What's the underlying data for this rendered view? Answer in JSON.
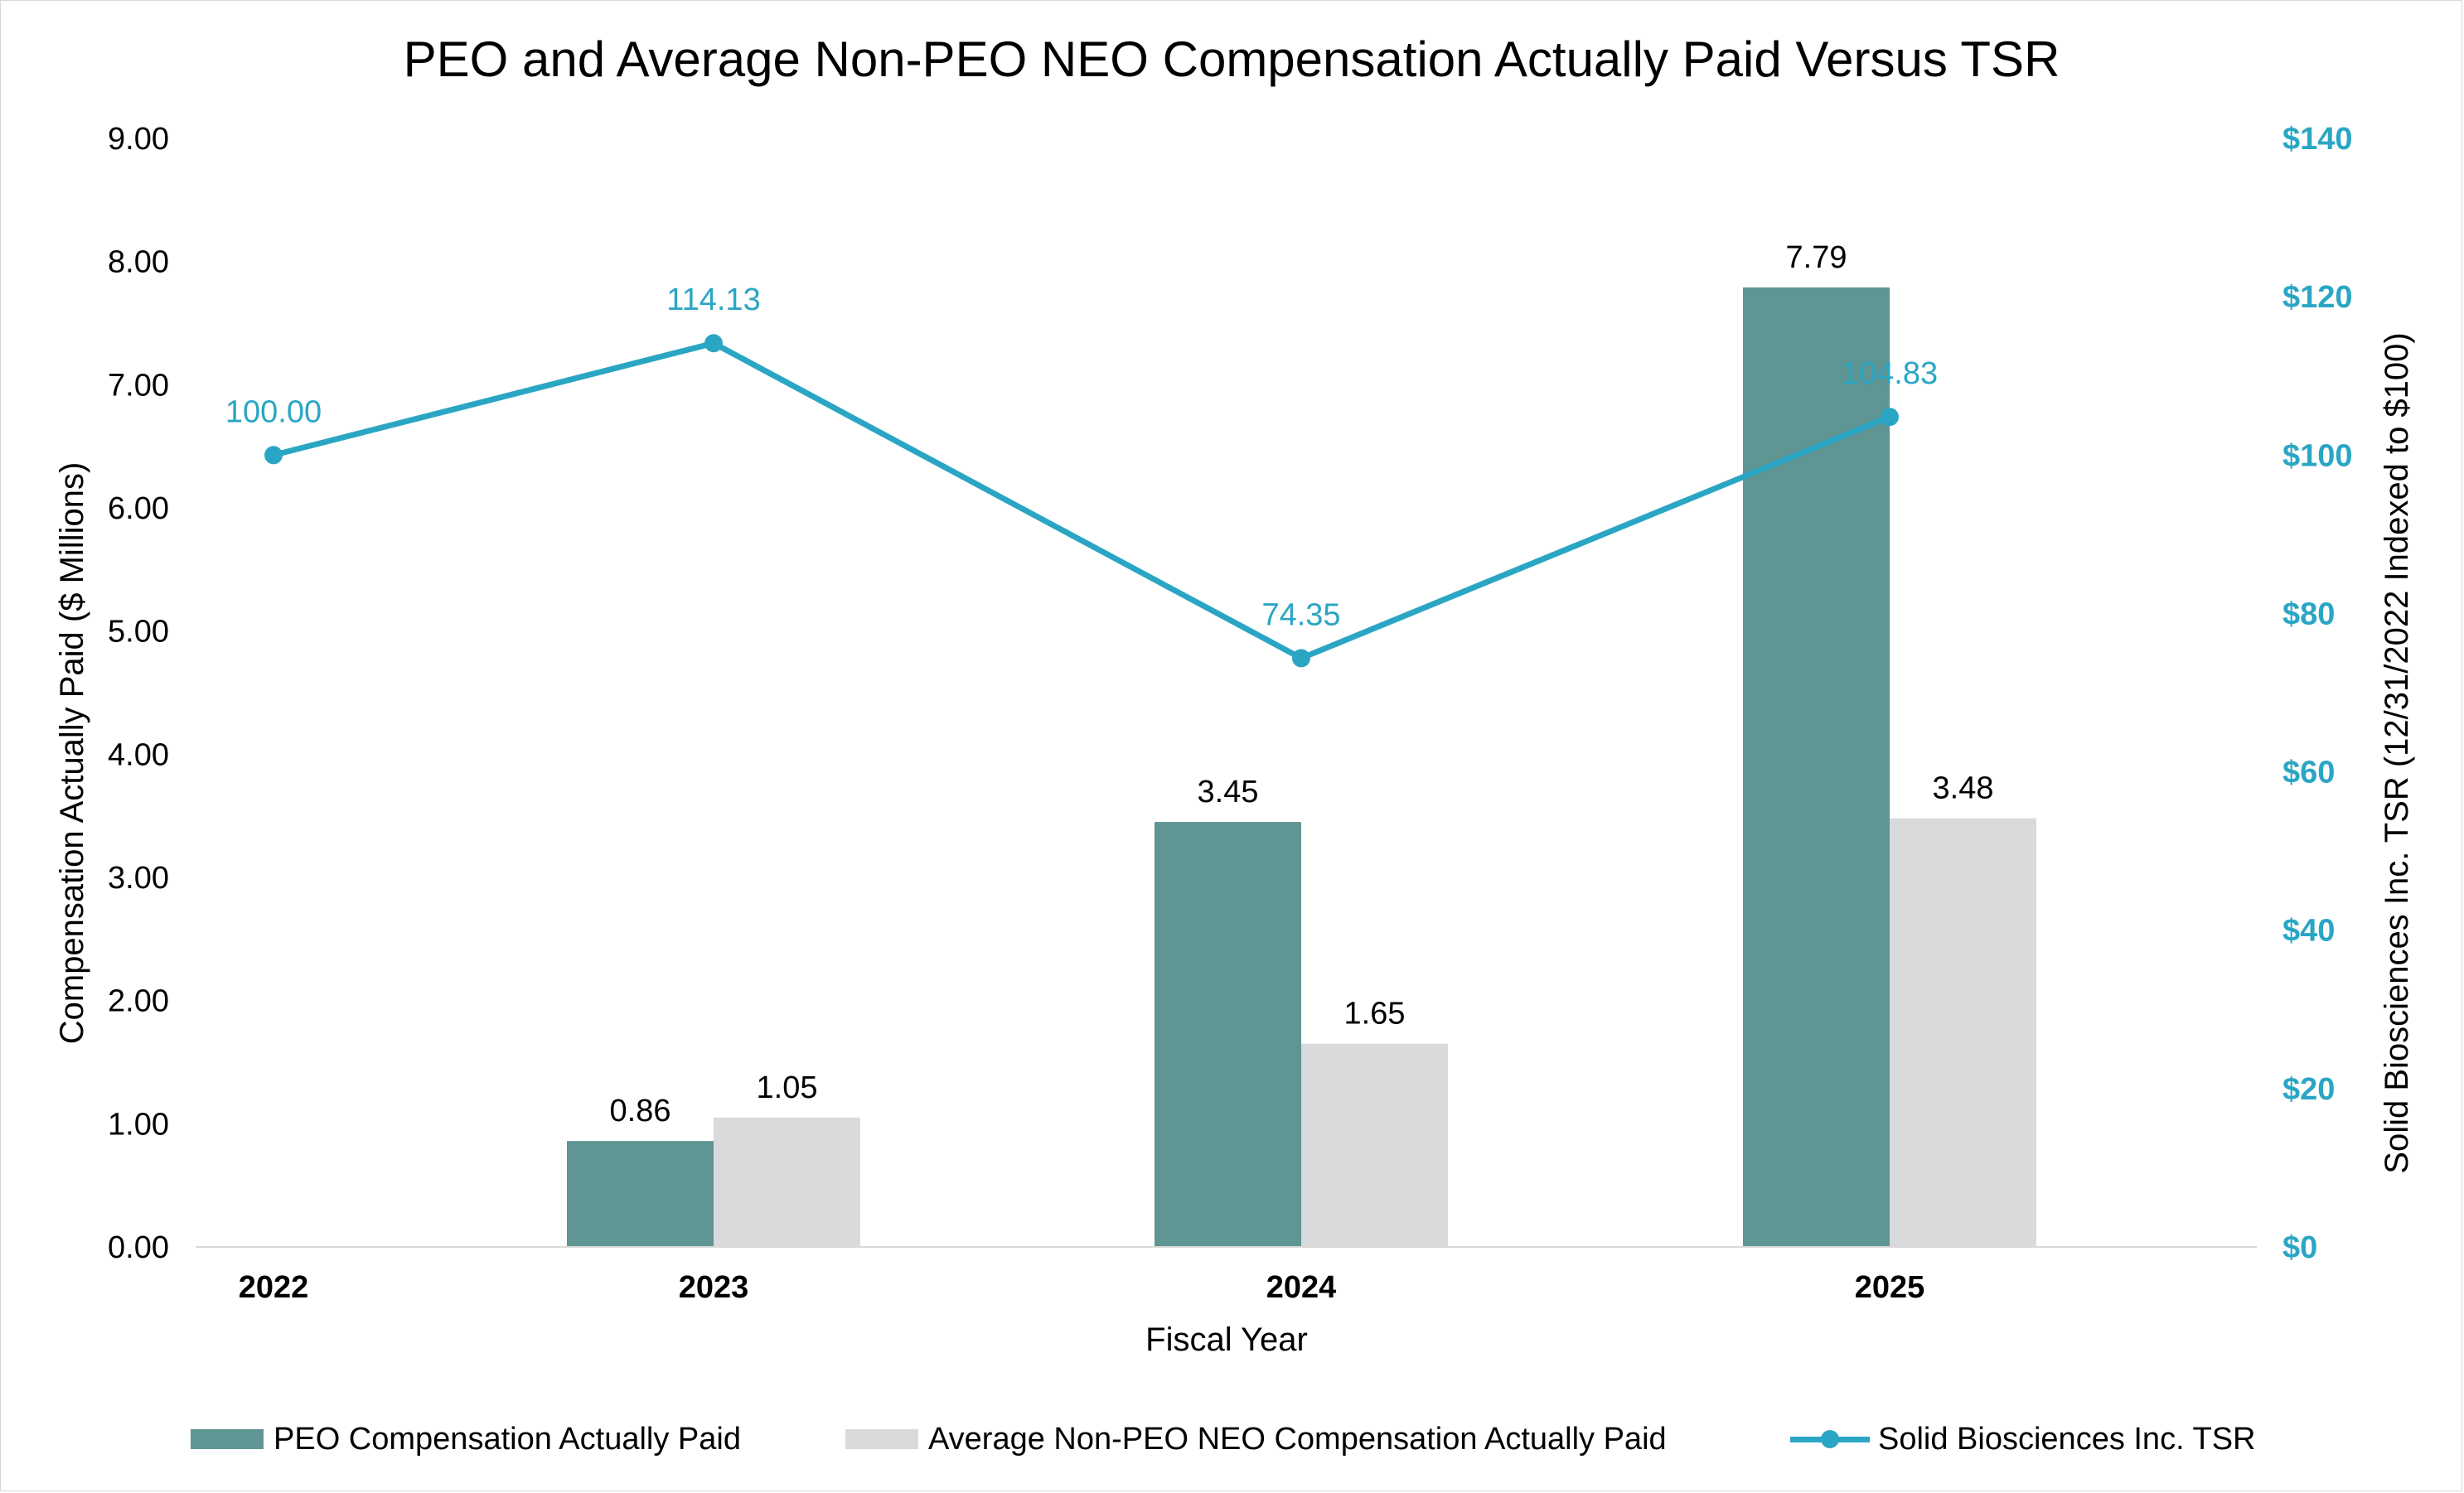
{
  "colors": {
    "peo": "#5f9593",
    "nonpeo": "#d8dadc",
    "tsr": "#2aa6c4",
    "axis_right": "#2aa6c4"
  },
  "chart_data": {
    "type": "bar",
    "title": "PEO and Average Non-PEO NEO Compensation Actually Paid Versus TSR",
    "xlabel": "Fiscal Year",
    "ylabel": "Compensation Actually Paid ($ Millions)",
    "y2label": "Solid Biosciences Inc. TSR (12/31/2022 Indexed to $100)",
    "categories": [
      "2022",
      "2023",
      "2024",
      "2025"
    ],
    "ylim": [
      0,
      9
    ],
    "y_ticks": [
      "0.00",
      "1.00",
      "2.00",
      "3.00",
      "4.00",
      "5.00",
      "6.00",
      "7.00",
      "8.00",
      "9.00"
    ],
    "y2lim": [
      0,
      140
    ],
    "y2_ticks": [
      "$0",
      "$20",
      "$40",
      "$60",
      "$80",
      "$100",
      "$120",
      "$140"
    ],
    "grid": false,
    "legend_position": "bottom",
    "series": [
      {
        "name": "PEO Compensation Actually Paid",
        "kind": "bar",
        "axis": "left",
        "values": [
          null,
          0.86,
          3.45,
          7.79
        ],
        "labels": [
          "",
          "0.86",
          "3.45",
          "7.79"
        ]
      },
      {
        "name": "Average Non-PEO NEO Compensation Actually Paid",
        "kind": "bar",
        "axis": "left",
        "values": [
          null,
          1.05,
          1.65,
          3.48
        ],
        "labels": [
          "",
          "1.05",
          "1.65",
          "3.48"
        ]
      },
      {
        "name": "Solid Biosciences Inc. TSR",
        "kind": "line",
        "axis": "right",
        "values": [
          100.0,
          114.13,
          74.35,
          104.83
        ],
        "labels": [
          "100.00",
          "114.13",
          "74.35",
          "104.83"
        ]
      }
    ]
  }
}
